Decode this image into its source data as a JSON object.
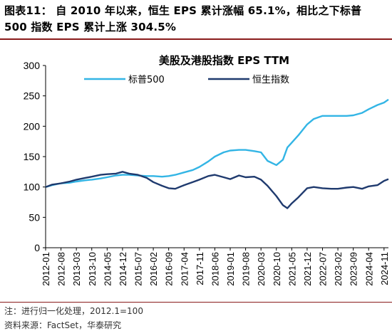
{
  "caption": {
    "line1": "图表11：  自 2010 年以来，恒生 EPS 累计涨幅 65.1%，相比之下标普",
    "line2": "500 指数 EPS 累计上涨 304.5%"
  },
  "notes": {
    "note": "注：进行归一化处理，2012.1=100",
    "source": "资料来源：FactSet，华泰研究"
  },
  "chart_data": {
    "type": "line",
    "title": "美股及港股指数 EPS TTM",
    "ylim": [
      0,
      300
    ],
    "yticks": [
      0,
      50,
      100,
      150,
      200,
      250,
      300
    ],
    "x_tick_labels": [
      "2012-01",
      "2012-08",
      "2013-03",
      "2013-10",
      "2014-05",
      "2014-12",
      "2015-07",
      "2016-02",
      "2016-09",
      "2017-04",
      "2017-11",
      "2018-06",
      "2019-01",
      "2019-08",
      "2020-03",
      "2020-10",
      "2021-05",
      "2021-12",
      "2022-07",
      "2023-02",
      "2023-09",
      "2024-04",
      "2024-11"
    ],
    "legend_position": "top",
    "grid": false,
    "series": [
      {
        "name": "标普500",
        "color": "#33b5e5",
        "points": [
          [
            "2012-01",
            100
          ],
          [
            "2012-04",
            103
          ],
          [
            "2012-08",
            106
          ],
          [
            "2012-12",
            107
          ],
          [
            "2013-03",
            109
          ],
          [
            "2013-07",
            111
          ],
          [
            "2013-10",
            112
          ],
          [
            "2014-02",
            114
          ],
          [
            "2014-05",
            116
          ],
          [
            "2014-09",
            119
          ],
          [
            "2014-12",
            120
          ],
          [
            "2015-03",
            120
          ],
          [
            "2015-07",
            119
          ],
          [
            "2015-11",
            118
          ],
          [
            "2016-02",
            118
          ],
          [
            "2016-06",
            117
          ],
          [
            "2016-09",
            118
          ],
          [
            "2016-12",
            120
          ],
          [
            "2017-04",
            124
          ],
          [
            "2017-08",
            128
          ],
          [
            "2017-11",
            133
          ],
          [
            "2018-03",
            142
          ],
          [
            "2018-06",
            150
          ],
          [
            "2018-10",
            157
          ],
          [
            "2019-01",
            160
          ],
          [
            "2019-05",
            161
          ],
          [
            "2019-08",
            161
          ],
          [
            "2019-12",
            159
          ],
          [
            "2020-03",
            157
          ],
          [
            "2020-06",
            143
          ],
          [
            "2020-10",
            136
          ],
          [
            "2021-01",
            145
          ],
          [
            "2021-03",
            165
          ],
          [
            "2021-05",
            173
          ],
          [
            "2021-08",
            185
          ],
          [
            "2021-12",
            203
          ],
          [
            "2022-03",
            212
          ],
          [
            "2022-07",
            217
          ],
          [
            "2022-11",
            217
          ],
          [
            "2023-02",
            217
          ],
          [
            "2023-06",
            217
          ],
          [
            "2023-09",
            218
          ],
          [
            "2024-01",
            222
          ],
          [
            "2024-04",
            228
          ],
          [
            "2024-08",
            235
          ],
          [
            "2024-11",
            239
          ],
          [
            "2025-01",
            244
          ]
        ]
      },
      {
        "name": "恒生指数",
        "color": "#1f3a6e",
        "points": [
          [
            "2012-01",
            100
          ],
          [
            "2012-04",
            104
          ],
          [
            "2012-08",
            106
          ],
          [
            "2012-12",
            109
          ],
          [
            "2013-03",
            112
          ],
          [
            "2013-07",
            115
          ],
          [
            "2013-10",
            117
          ],
          [
            "2014-02",
            120
          ],
          [
            "2014-05",
            121
          ],
          [
            "2014-09",
            122
          ],
          [
            "2014-12",
            125
          ],
          [
            "2015-03",
            122
          ],
          [
            "2015-07",
            120
          ],
          [
            "2015-11",
            115
          ],
          [
            "2016-02",
            108
          ],
          [
            "2016-06",
            102
          ],
          [
            "2016-09",
            98
          ],
          [
            "2016-12",
            97
          ],
          [
            "2017-04",
            103
          ],
          [
            "2017-08",
            108
          ],
          [
            "2017-11",
            112
          ],
          [
            "2018-03",
            118
          ],
          [
            "2018-06",
            120
          ],
          [
            "2018-10",
            116
          ],
          [
            "2019-01",
            113
          ],
          [
            "2019-05",
            119
          ],
          [
            "2019-08",
            116
          ],
          [
            "2019-12",
            117
          ],
          [
            "2020-03",
            112
          ],
          [
            "2020-06",
            102
          ],
          [
            "2020-10",
            85
          ],
          [
            "2021-01",
            70
          ],
          [
            "2021-03",
            65
          ],
          [
            "2021-05",
            73
          ],
          [
            "2021-08",
            83
          ],
          [
            "2021-12",
            98
          ],
          [
            "2022-03",
            100
          ],
          [
            "2022-07",
            98
          ],
          [
            "2022-11",
            97
          ],
          [
            "2023-02",
            97
          ],
          [
            "2023-06",
            99
          ],
          [
            "2023-09",
            100
          ],
          [
            "2024-01",
            97
          ],
          [
            "2024-04",
            101
          ],
          [
            "2024-08",
            103
          ],
          [
            "2024-11",
            110
          ],
          [
            "2025-01",
            113
          ]
        ]
      }
    ]
  }
}
